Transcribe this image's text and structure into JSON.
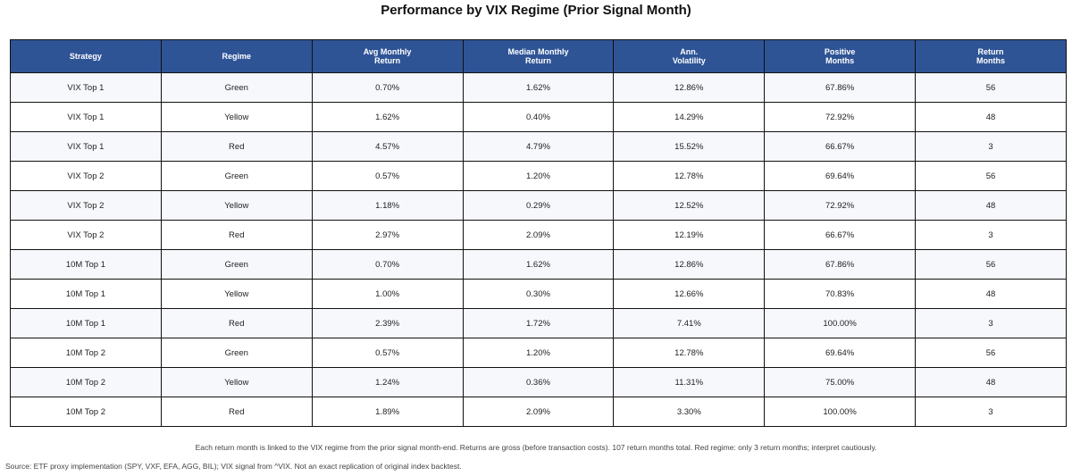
{
  "title": "Performance by VIX Regime (Prior Signal Month)",
  "columns": [
    {
      "line1": "Strategy",
      "line2": ""
    },
    {
      "line1": "Regime",
      "line2": ""
    },
    {
      "line1": "Avg Monthly",
      "line2": "Return"
    },
    {
      "line1": "Median Monthly",
      "line2": "Return"
    },
    {
      "line1": "Ann.",
      "line2": "Volatility"
    },
    {
      "line1": "Positive",
      "line2": "Months"
    },
    {
      "line1": "Return",
      "line2": "Months"
    }
  ],
  "rows": [
    [
      "VIX Top 1",
      "Green",
      "0.70%",
      "1.62%",
      "12.86%",
      "67.86%",
      "56"
    ],
    [
      "VIX Top 1",
      "Yellow",
      "1.62%",
      "0.40%",
      "14.29%",
      "72.92%",
      "48"
    ],
    [
      "VIX Top 1",
      "Red",
      "4.57%",
      "4.79%",
      "15.52%",
      "66.67%",
      "3"
    ],
    [
      "VIX Top 2",
      "Green",
      "0.57%",
      "1.20%",
      "12.78%",
      "69.64%",
      "56"
    ],
    [
      "VIX Top 2",
      "Yellow",
      "1.18%",
      "0.29%",
      "12.52%",
      "72.92%",
      "48"
    ],
    [
      "VIX Top 2",
      "Red",
      "2.97%",
      "2.09%",
      "12.19%",
      "66.67%",
      "3"
    ],
    [
      "10M Top 1",
      "Green",
      "0.70%",
      "1.62%",
      "12.86%",
      "67.86%",
      "56"
    ],
    [
      "10M Top 1",
      "Yellow",
      "1.00%",
      "0.30%",
      "12.66%",
      "70.83%",
      "48"
    ],
    [
      "10M Top 1",
      "Red",
      "2.39%",
      "1.72%",
      "7.41%",
      "100.00%",
      "3"
    ],
    [
      "10M Top 2",
      "Green",
      "0.57%",
      "1.20%",
      "12.78%",
      "69.64%",
      "56"
    ],
    [
      "10M Top 2",
      "Yellow",
      "1.24%",
      "0.36%",
      "11.31%",
      "75.00%",
      "48"
    ],
    [
      "10M Top 2",
      "Red",
      "1.89%",
      "2.09%",
      "3.30%",
      "100.00%",
      "3"
    ]
  ],
  "note": "Each return month is linked to the VIX regime from the prior signal month-end. Returns are gross (before transaction costs). 107 return months total. Red regime: only 3 return months; interpret cautiously.",
  "source": "Source: ETF proxy implementation (SPY, VXF, EFA, AGG, BIL); VIX signal from ^VIX. Not an exact replication of original index backtest.",
  "colors": {
    "header_bg": "#2f5496",
    "header_text": "#ffffff",
    "row_odd_bg": "#f6f8fc",
    "row_even_bg": "#ffffff",
    "border": "#111111"
  }
}
